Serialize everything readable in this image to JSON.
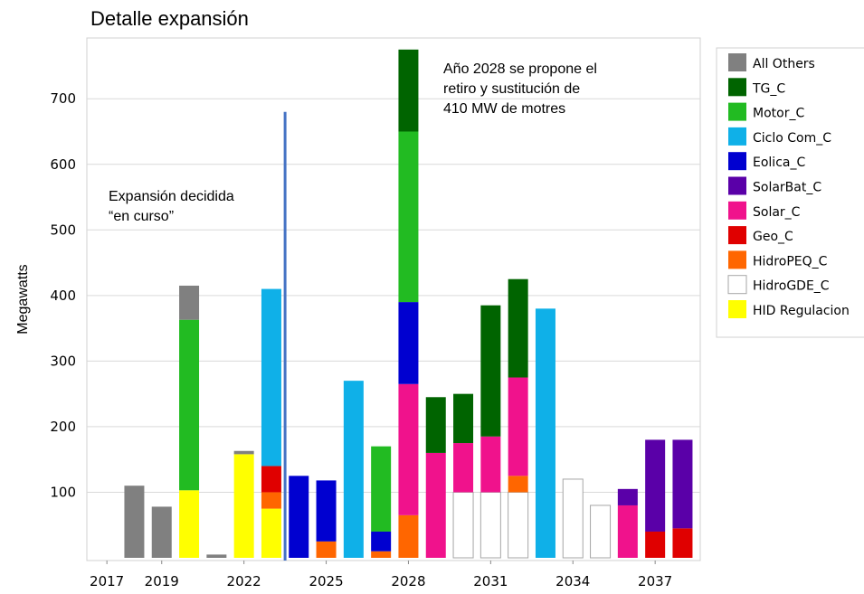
{
  "chart_data": {
    "type": "bar",
    "stacked": true,
    "title": "Detalle expansión",
    "xlabel": "",
    "ylabel": "Megawatts",
    "ylim": [
      -20,
      800
    ],
    "yticks": [
      100,
      200,
      300,
      400,
      500,
      600,
      700
    ],
    "grid": true,
    "legend_position": "right",
    "x": [
      2017,
      2018,
      2019,
      2020,
      2021,
      2022,
      2023,
      2024,
      2025,
      2026,
      2027,
      2028,
      2029,
      2030,
      2031,
      2032,
      2033,
      2034,
      2035,
      2036,
      2037,
      2038
    ],
    "xtick_labels": [
      "2017",
      "2019",
      "2022",
      "2025",
      "2028",
      "2031",
      "2034",
      "2037"
    ],
    "xtick_values": [
      2017,
      2019,
      2022,
      2025,
      2028,
      2031,
      2034,
      2037
    ],
    "series": [
      {
        "name": "HID Regulacion",
        "color": "#ffff00",
        "values": [
          0,
          0,
          0,
          103,
          0,
          158,
          75,
          0,
          0,
          0,
          0,
          0,
          0,
          0,
          0,
          0,
          0,
          0,
          0,
          0,
          0,
          0
        ]
      },
      {
        "name": "HidroGDE_C",
        "color": "#ffffff",
        "values": [
          0,
          0,
          0,
          0,
          0,
          0,
          0,
          0,
          0,
          0,
          0,
          0,
          0,
          100,
          100,
          100,
          0,
          120,
          80,
          0,
          0,
          0
        ]
      },
      {
        "name": "HidroPEQ_C",
        "color": "#ff6600",
        "values": [
          0,
          0,
          0,
          0,
          0,
          0,
          25,
          0,
          25,
          0,
          10,
          65,
          0,
          0,
          0,
          25,
          0,
          0,
          0,
          0,
          0,
          0
        ]
      },
      {
        "name": "Geo_C",
        "color": "#e00000",
        "values": [
          0,
          0,
          0,
          0,
          0,
          0,
          40,
          0,
          0,
          0,
          0,
          0,
          0,
          0,
          0,
          0,
          0,
          0,
          0,
          0,
          40,
          45
        ]
      },
      {
        "name": "Solar_C",
        "color": "#f0128c",
        "values": [
          0,
          0,
          0,
          0,
          0,
          0,
          0,
          0,
          0,
          0,
          0,
          200,
          160,
          75,
          85,
          150,
          0,
          0,
          0,
          80,
          0,
          0
        ]
      },
      {
        "name": "SolarBat_C",
        "color": "#5a00a8",
        "values": [
          0,
          0,
          0,
          0,
          0,
          0,
          0,
          0,
          0,
          0,
          0,
          0,
          0,
          0,
          0,
          0,
          0,
          0,
          0,
          25,
          140,
          135
        ]
      },
      {
        "name": "Eolica_C",
        "color": "#0000d0",
        "values": [
          0,
          0,
          0,
          0,
          0,
          0,
          0,
          125,
          93,
          0,
          30,
          125,
          0,
          0,
          0,
          0,
          0,
          0,
          0,
          0,
          0,
          0
        ]
      },
      {
        "name": "Ciclo Com_C",
        "color": "#0fb0e8",
        "values": [
          0,
          0,
          0,
          0,
          0,
          0,
          270,
          0,
          0,
          270,
          0,
          0,
          0,
          0,
          0,
          0,
          380,
          0,
          0,
          0,
          0,
          0
        ]
      },
      {
        "name": "Motor_C",
        "color": "#22bb22",
        "values": [
          0,
          0,
          0,
          260,
          0,
          0,
          0,
          0,
          0,
          0,
          130,
          260,
          0,
          0,
          0,
          0,
          0,
          0,
          0,
          0,
          0,
          0
        ]
      },
      {
        "name": "TG_C",
        "color": "#006400",
        "values": [
          0,
          0,
          0,
          0,
          0,
          0,
          0,
          0,
          0,
          0,
          0,
          125,
          85,
          75,
          200,
          150,
          0,
          0,
          0,
          0,
          0,
          0
        ]
      },
      {
        "name": "All Others",
        "color": "#808080",
        "values": [
          0,
          110,
          78,
          52,
          5,
          5,
          0,
          0,
          0,
          0,
          0,
          0,
          0,
          0,
          0,
          0,
          0,
          0,
          0,
          0,
          0,
          0
        ]
      }
    ],
    "legend_order": [
      "All Others",
      "TG_C",
      "Motor_C",
      "Ciclo Com_C",
      "Eolica_C",
      "SolarBat_C",
      "Solar_C",
      "Geo_C",
      "HidroPEQ_C",
      "HidroGDE_C",
      "HID Regulacion"
    ],
    "annotations": [
      {
        "lines": [
          "Expansión decidida",
          "“en curso”"
        ]
      },
      {
        "lines": [
          "Año 2028 se propone el",
          "retiro y sustitución de",
          "410 MW de motres"
        ]
      }
    ],
    "vertical_line": {
      "x": 2023.5,
      "y_top": 680,
      "color": "#4472c4"
    }
  }
}
